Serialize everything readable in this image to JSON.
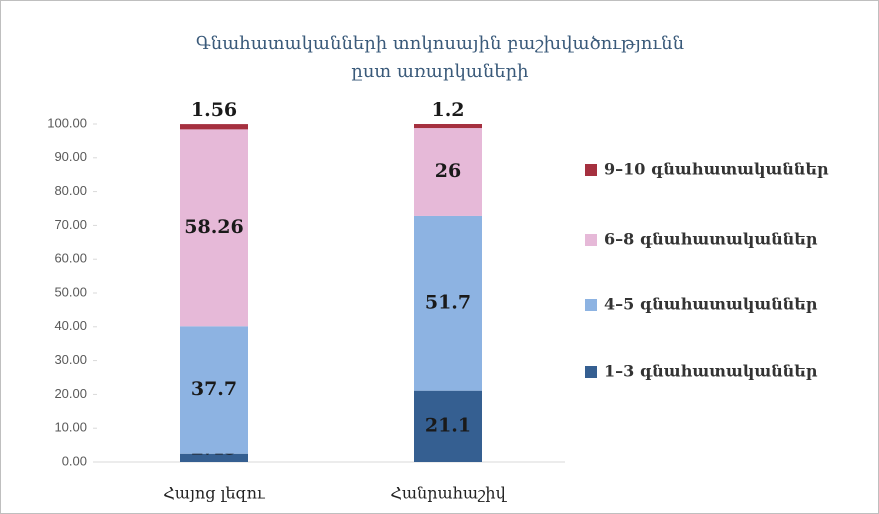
{
  "chart_data": {
    "type": "stacked_bar",
    "title": [
      "Գնահատականների տոկոսային բաշխվածությունն",
      "ըստ առարկաների"
    ],
    "categories": [
      "Հայոց լեզու",
      "Հանրահաշիվ"
    ],
    "series": [
      {
        "name": "1–3 գնահատականներ",
        "color": "#355f91",
        "values": [
          2.45,
          21.1
        ]
      },
      {
        "name": "4–5 գնահատականներ",
        "color": "#8db3e2",
        "values": [
          37.7,
          51.7
        ]
      },
      {
        "name": "6–8 գնահատականներ",
        "color": "#e6b9d8",
        "values": [
          58.26,
          26
        ]
      },
      {
        "name": "9–10 գնահատականներ",
        "color": "#a5303f",
        "values": [
          1.56,
          1.2
        ]
      }
    ],
    "ylim": [
      0,
      100
    ],
    "yticks": [
      {
        "value": 0,
        "label": "0.00"
      },
      {
        "value": 10,
        "label": "10.00"
      },
      {
        "value": 20,
        "label": "20.00"
      },
      {
        "value": 30,
        "label": "30.00"
      },
      {
        "value": 40,
        "label": "40.00"
      },
      {
        "value": 50,
        "label": "50.00"
      },
      {
        "value": 60,
        "label": "60.00"
      },
      {
        "value": 70,
        "label": "70.00"
      },
      {
        "value": 80,
        "label": "80.00"
      },
      {
        "value": 90,
        "label": "90.00"
      },
      {
        "value": 100,
        "label": "100.00"
      }
    ],
    "grid": false,
    "legend": "right"
  }
}
